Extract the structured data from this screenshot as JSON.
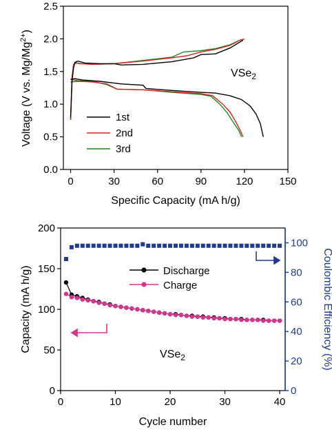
{
  "chart_data": [
    {
      "type": "line",
      "xlabel": "Specific Capacity (mA h/g)",
      "ylabel": "Voltage (V vs. Mg/Mg",
      "ylabel_sup": "2+",
      "ylabel_end": ")",
      "xlim": [
        -5,
        150
      ],
      "ylim": [
        0,
        2.5
      ],
      "xticks": [
        0,
        30,
        60,
        90,
        120,
        150
      ],
      "yticks": [
        0.0,
        0.5,
        1.0,
        1.5,
        2.0,
        2.5
      ],
      "xtick_labels": [
        "0",
        "30",
        "60",
        "90",
        "120",
        "150"
      ],
      "ytick_labels": [
        "0.0",
        "0.5",
        "1.0",
        "1.5",
        "2.0",
        "2.5"
      ],
      "annotation": {
        "text": "VSe",
        "sub": "2",
        "at": [
          110,
          1.35
        ]
      },
      "legend_position": "lower-left",
      "series": [
        {
          "name": "1st",
          "color": "#000000",
          "discharge": [
            [
              0,
              1.38
            ],
            [
              3,
              1.39
            ],
            [
              8,
              1.37
            ],
            [
              20,
              1.35
            ],
            [
              35,
              1.31
            ],
            [
              50,
              1.29
            ],
            [
              52,
              1.24
            ],
            [
              70,
              1.21
            ],
            [
              90,
              1.18
            ],
            [
              100,
              1.17
            ],
            [
              110,
              1.13
            ],
            [
              118,
              1.07
            ],
            [
              124,
              0.97
            ],
            [
              128,
              0.85
            ],
            [
              131,
              0.7
            ],
            [
              133,
              0.5
            ]
          ],
          "charge": [
            [
              0,
              0.8
            ],
            [
              1,
              1.35
            ],
            [
              2,
              1.55
            ],
            [
              3,
              1.64
            ],
            [
              5,
              1.66
            ],
            [
              10,
              1.63
            ],
            [
              20,
              1.62
            ],
            [
              30,
              1.62
            ],
            [
              35,
              1.6
            ],
            [
              50,
              1.61
            ],
            [
              70,
              1.65
            ],
            [
              85,
              1.71
            ],
            [
              90,
              1.76
            ],
            [
              100,
              1.77
            ],
            [
              110,
              1.86
            ],
            [
              116,
              1.94
            ],
            [
              119,
              1.98
            ]
          ]
        },
        {
          "name": "2nd",
          "color": "#d62020",
          "discharge": [
            [
              0,
              1.34
            ],
            [
              5,
              1.35
            ],
            [
              15,
              1.34
            ],
            [
              25,
              1.31
            ],
            [
              32,
              1.23
            ],
            [
              50,
              1.22
            ],
            [
              70,
              1.19
            ],
            [
              90,
              1.16
            ],
            [
              98,
              1.13
            ],
            [
              105,
              1.0
            ],
            [
              110,
              0.88
            ],
            [
              114,
              0.73
            ],
            [
              117,
              0.6
            ],
            [
              119,
              0.5
            ]
          ],
          "charge": [
            [
              0,
              0.76
            ],
            [
              1,
              1.4
            ],
            [
              2,
              1.6
            ],
            [
              3,
              1.64
            ],
            [
              6,
              1.62
            ],
            [
              15,
              1.61
            ],
            [
              30,
              1.62
            ],
            [
              50,
              1.66
            ],
            [
              70,
              1.71
            ],
            [
              80,
              1.74
            ],
            [
              90,
              1.8
            ],
            [
              100,
              1.84
            ],
            [
              110,
              1.9
            ],
            [
              117,
              1.98
            ],
            [
              120,
              2.0
            ]
          ]
        },
        {
          "name": "3rd",
          "color": "#1e8a1e",
          "discharge": [
            [
              0,
              1.38
            ],
            [
              5,
              1.36
            ],
            [
              15,
              1.35
            ],
            [
              25,
              1.3
            ],
            [
              32,
              1.23
            ],
            [
              50,
              1.22
            ],
            [
              70,
              1.18
            ],
            [
              90,
              1.15
            ],
            [
              97,
              1.12
            ],
            [
              103,
              1.0
            ],
            [
              108,
              0.87
            ],
            [
              112,
              0.73
            ],
            [
              116,
              0.6
            ],
            [
              118,
              0.5
            ]
          ],
          "charge": [
            [
              0,
              0.76
            ],
            [
              1,
              1.42
            ],
            [
              2,
              1.6
            ],
            [
              4,
              1.63
            ],
            [
              8,
              1.62
            ],
            [
              15,
              1.61
            ],
            [
              30,
              1.62
            ],
            [
              50,
              1.67
            ],
            [
              70,
              1.72
            ],
            [
              78,
              1.8
            ],
            [
              90,
              1.82
            ],
            [
              100,
              1.85
            ],
            [
              110,
              1.91
            ],
            [
              116,
              1.97
            ],
            [
              118,
              1.99
            ]
          ]
        }
      ]
    },
    {
      "type": "scatter",
      "xlabel": "Cycle number",
      "ylabel": "Capacity (mA h/g)",
      "y2label": "Coulombic Efficiency (%)",
      "xlim": [
        0,
        41
      ],
      "ylim": [
        0,
        200
      ],
      "y2lim": [
        0,
        110
      ],
      "xticks": [
        0,
        10,
        20,
        30,
        40
      ],
      "yticks": [
        0,
        50,
        100,
        150,
        200
      ],
      "y2ticks": [
        0,
        20,
        40,
        60,
        80,
        100
      ],
      "xtick_labels": [
        "0",
        "10",
        "20",
        "30",
        "40"
      ],
      "ytick_labels": [
        "0",
        "50",
        "100",
        "150",
        "200"
      ],
      "y2tick_labels": [
        "0",
        "20",
        "40",
        "60",
        "80",
        "100"
      ],
      "annotation": {
        "text": "VSe",
        "sub": "2",
        "at": [
          18,
          45
        ]
      },
      "legend_position": "upper-center",
      "colors": {
        "discharge": "#000000",
        "charge": "#d6338f",
        "ce": "#1f3a93"
      },
      "series": [
        {
          "name": "Discharge",
          "x": [
            1,
            2,
            3,
            4,
            5,
            6,
            7,
            8,
            9,
            10,
            11,
            12,
            13,
            14,
            15,
            16,
            17,
            18,
            19,
            20,
            21,
            22,
            23,
            24,
            25,
            26,
            27,
            28,
            29,
            30,
            31,
            32,
            33,
            34,
            35,
            36,
            37,
            38,
            39,
            40
          ],
          "values": [
            133,
            118,
            116,
            114,
            112,
            110,
            109,
            107,
            106,
            104,
            103,
            102,
            101,
            100,
            99,
            98,
            97,
            96,
            95,
            94,
            94,
            93,
            92,
            92,
            91,
            91,
            90,
            90,
            89,
            89,
            88,
            88,
            88,
            87,
            87,
            87,
            87,
            86,
            86,
            86
          ]
        },
        {
          "name": "Charge",
          "x": [
            1,
            2,
            3,
            4,
            5,
            6,
            7,
            8,
            9,
            10,
            11,
            12,
            13,
            14,
            15,
            16,
            17,
            18,
            19,
            20,
            21,
            22,
            23,
            24,
            25,
            26,
            27,
            28,
            29,
            30,
            31,
            32,
            33,
            34,
            35,
            36,
            37,
            38,
            39,
            40
          ],
          "values": [
            119,
            115,
            114,
            112,
            111,
            110,
            108,
            107,
            105,
            104,
            103,
            102,
            101,
            100,
            99,
            98,
            97,
            96,
            95,
            94,
            93,
            93,
            92,
            91,
            91,
            90,
            90,
            89,
            89,
            88,
            88,
            88,
            87,
            87,
            87,
            87,
            86,
            86,
            86,
            86
          ]
        },
        {
          "name": "",
          "axis": "y2",
          "x": [
            1,
            2,
            3,
            4,
            5,
            6,
            7,
            8,
            9,
            10,
            11,
            12,
            13,
            14,
            15,
            16,
            17,
            18,
            19,
            20,
            21,
            22,
            23,
            24,
            25,
            26,
            27,
            28,
            29,
            30,
            31,
            32,
            33,
            34,
            35,
            36,
            37,
            38,
            39,
            40
          ],
          "values": [
            89,
            97,
            98,
            98,
            98,
            98,
            98,
            98,
            98,
            98,
            98,
            98,
            98,
            98,
            99,
            98,
            98,
            98,
            98,
            98,
            98,
            98,
            98,
            98,
            98,
            98,
            98,
            98,
            98,
            98,
            98,
            98,
            98,
            98,
            98,
            98,
            98,
            98,
            98,
            98
          ]
        }
      ]
    }
  ]
}
